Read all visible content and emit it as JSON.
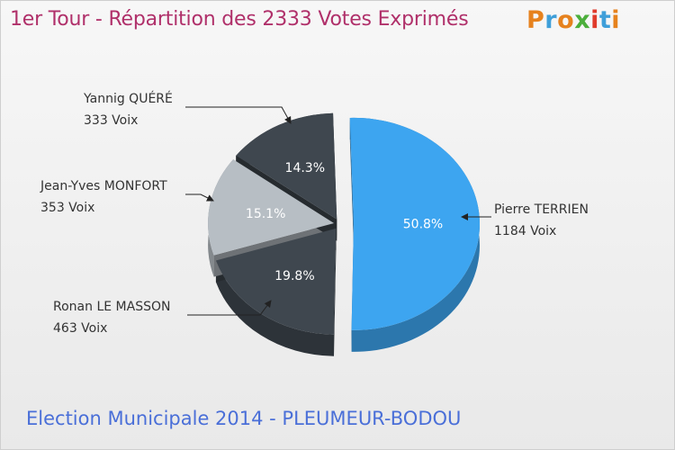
{
  "title": "1er Tour - Répartition des 2333 Votes Exprimés",
  "subtitle": "Election Municipale 2014 - PLEUMEUR-BODOU",
  "logo": {
    "letters": [
      "P",
      "r",
      "o",
      "x",
      "i",
      "t",
      "i"
    ],
    "colors": [
      "#e6821e",
      "#3f9fd9",
      "#e6821e",
      "#4caf3c",
      "#e03b2c",
      "#3f9fd9",
      "#e6821e"
    ]
  },
  "chart_data": {
    "type": "pie",
    "title": "1er Tour - Répartition des 2333 Votes Exprimés",
    "total": 2333,
    "slices": [
      {
        "name": "Pierre TERRIEN",
        "votes_label": "1184 Voix",
        "votes": 1184,
        "pct": 50.8,
        "pct_label": "50.8%",
        "color": "#3da5f0"
      },
      {
        "name": "Ronan LE MASSON",
        "votes_label": "463 Voix",
        "votes": 463,
        "pct": 19.8,
        "pct_label": "19.8%",
        "color": "#3f474f"
      },
      {
        "name": "Jean-Yves MONFORT",
        "votes_label": "353 Voix",
        "votes": 353,
        "pct": 15.1,
        "pct_label": "15.1%",
        "color": "#b7bec4"
      },
      {
        "name": "Yannig QUÉRÉ",
        "votes_label": "333 Voix",
        "votes": 333,
        "pct": 14.3,
        "pct_label": "14.3%",
        "color": "#3f474f"
      }
    ]
  }
}
